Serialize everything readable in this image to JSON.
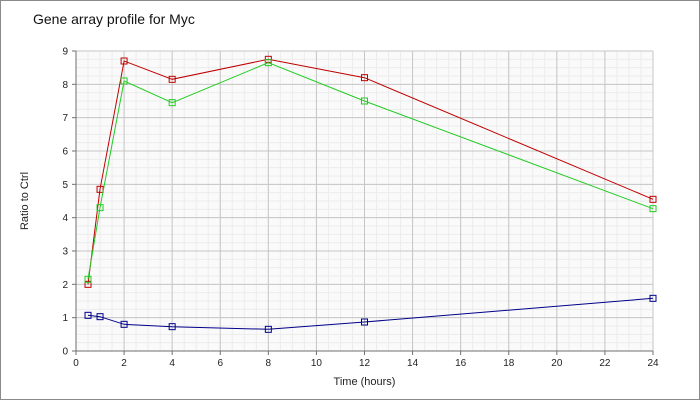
{
  "chart_data": {
    "type": "line",
    "title": "Gene array profile for Myc",
    "xlabel": "Time (hours)",
    "ylabel": "Ratio to Ctrl",
    "xlim": [
      0,
      24
    ],
    "ylim": [
      0,
      9
    ],
    "xticks": [
      0,
      2,
      4,
      6,
      8,
      10,
      12,
      14,
      16,
      18,
      20,
      22,
      24
    ],
    "yticks": [
      0,
      1,
      2,
      3,
      4,
      5,
      6,
      7,
      8,
      9
    ],
    "grid": true,
    "legend": "none",
    "marker": "square",
    "series": [
      {
        "color": "#c00000",
        "x": [
          0.5,
          1,
          2,
          4,
          8,
          12,
          24
        ],
        "y": [
          2.0,
          4.85,
          8.7,
          8.15,
          8.75,
          8.2,
          4.55
        ]
      },
      {
        "color": "#22cc22",
        "x": [
          0.5,
          1,
          2,
          4,
          8,
          12,
          24
        ],
        "y": [
          2.15,
          4.3,
          8.1,
          7.45,
          8.65,
          7.5,
          4.27
        ]
      },
      {
        "color": "#00008b",
        "x": [
          0.5,
          1,
          2,
          4,
          8,
          12,
          24
        ],
        "y": [
          1.07,
          1.03,
          0.8,
          0.73,
          0.65,
          0.87,
          1.58
        ]
      }
    ]
  }
}
